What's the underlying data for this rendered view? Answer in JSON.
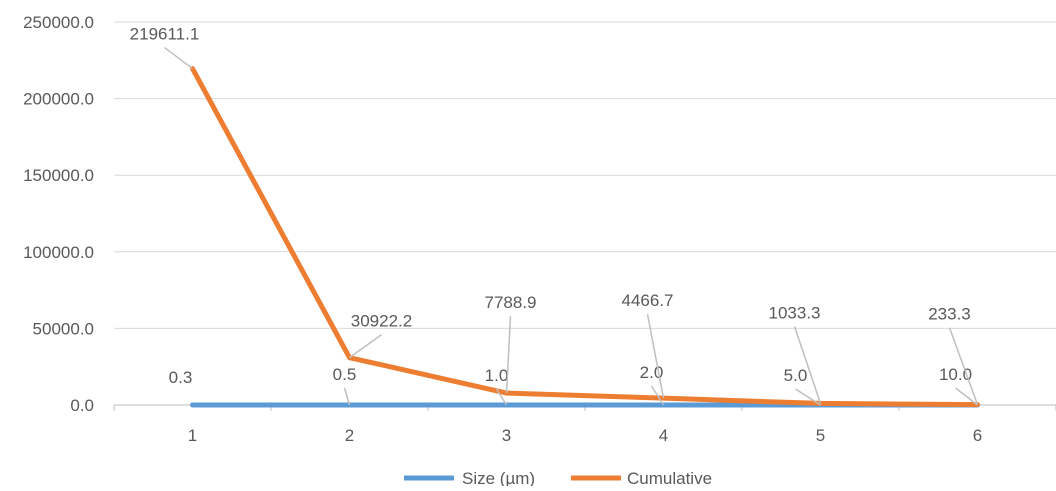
{
  "chart_data": {
    "type": "line",
    "categories": [
      "1",
      "2",
      "3",
      "4",
      "5",
      "6"
    ],
    "ylim": [
      0,
      250000
    ],
    "yticks": [
      "0.0",
      "50000.0",
      "100000.0",
      "150000.0",
      "200000.0",
      "250000.0"
    ],
    "grid": true,
    "legend_position": "bottom",
    "series": [
      {
        "name": "Size (µm)",
        "color": "#5B9BD5",
        "values": [
          0.3,
          0.5,
          1.0,
          2.0,
          5.0,
          10.0
        ],
        "labels": [
          "0.3",
          "0.5",
          "1.0",
          "2.0",
          "5.0",
          "10.0"
        ]
      },
      {
        "name": "Cumulative",
        "color": "#ED7D31",
        "values": [
          219611.1,
          30922.2,
          7788.9,
          4466.7,
          1033.3,
          233.3
        ],
        "labels": [
          "219611.1",
          "30922.2",
          "7788.9",
          "4466.7",
          "1033.3",
          "233.3"
        ]
      }
    ]
  }
}
